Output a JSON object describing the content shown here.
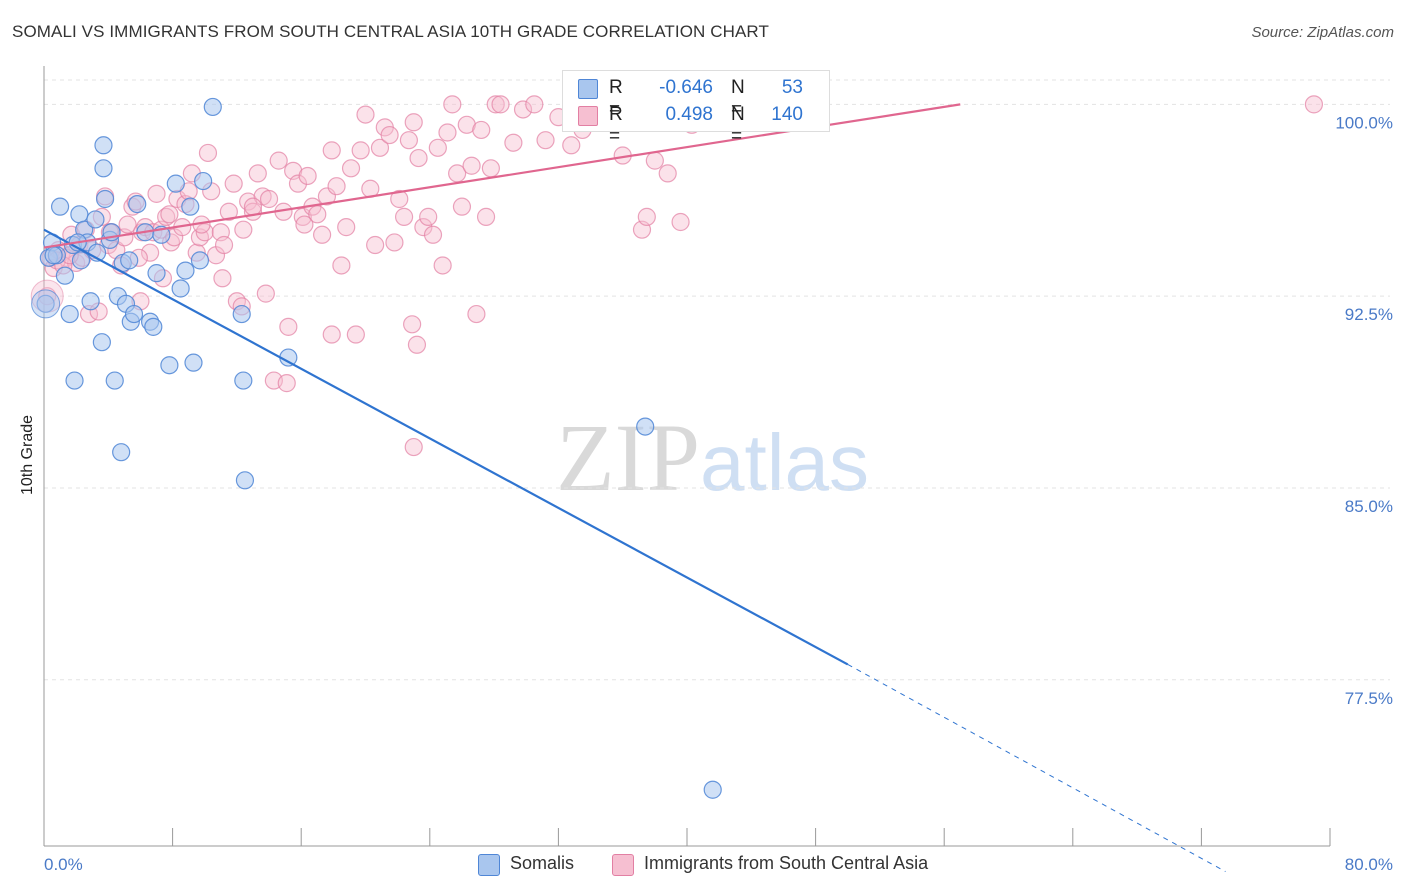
{
  "title": "SOMALI VS IMMIGRANTS FROM SOUTH CENTRAL ASIA 10TH GRADE CORRELATION CHART",
  "source": "Source: ZipAtlas.com",
  "watermark": {
    "zip": "ZIP",
    "atlas": "atlas"
  },
  "colors": {
    "somali_fill": "#a9c6ee",
    "somali_stroke": "#4f86d6",
    "somali_line": "#2f74d0",
    "sca_fill": "#f6bfd1",
    "sca_stroke": "#e27fa3",
    "sca_line": "#e0668f",
    "tick_label": "#4a7ac7",
    "grid": "#e3e3e3",
    "axis": "#999999"
  },
  "stats": [
    {
      "series": "Somalis",
      "r_label": "R =",
      "r_value": "-0.646",
      "n_label": "N =",
      "n_value": "53"
    },
    {
      "series": "Immigrants from South Central Asia",
      "r_label": "R =",
      "r_value": "0.498",
      "n_label": "N =",
      "n_value": "140"
    }
  ],
  "chart_data": {
    "type": "scatter",
    "title": "SOMALI VS IMMIGRANTS FROM SOUTH CENTRAL ASIA 10TH GRADE CORRELATION CHART",
    "xlabel": "",
    "ylabel": "10th Grade",
    "xlim": [
      0,
      80
    ],
    "ylim": [
      71.0,
      101.5
    ],
    "x_tick_labels": [
      "0.0%",
      "80.0%"
    ],
    "y_ticks": [
      77.5,
      85.0,
      92.5,
      100.0
    ],
    "y_tick_labels": [
      "77.5%",
      "85.0%",
      "92.5%",
      "100.0%"
    ],
    "grid": true,
    "legend": "bottom-center",
    "series": [
      {
        "name": "Somalis",
        "r": -0.646,
        "n": 53,
        "trend": {
          "x0": 0.0,
          "y0": 95.1,
          "x1": 50.0,
          "y1": 78.1,
          "dash_to_x": 73.5,
          "dash_to_y": 70.0
        },
        "points": [
          [
            0.1,
            92.2
          ],
          [
            0.3,
            94.0
          ],
          [
            0.5,
            94.6
          ],
          [
            0.8,
            94.1
          ],
          [
            1.0,
            96.0
          ],
          [
            1.3,
            93.3
          ],
          [
            1.6,
            91.8
          ],
          [
            1.8,
            94.5
          ],
          [
            2.2,
            95.7
          ],
          [
            2.5,
            95.1
          ],
          [
            2.7,
            94.6
          ],
          [
            2.9,
            92.3
          ],
          [
            3.2,
            95.5
          ],
          [
            3.3,
            94.2
          ],
          [
            3.6,
            90.7
          ],
          [
            3.8,
            96.3
          ],
          [
            3.7,
            98.4
          ],
          [
            3.7,
            97.5
          ],
          [
            4.1,
            94.7
          ],
          [
            4.2,
            95.0
          ],
          [
            4.4,
            89.2
          ],
          [
            4.6,
            92.5
          ],
          [
            4.8,
            86.4
          ],
          [
            4.9,
            93.8
          ],
          [
            5.1,
            92.2
          ],
          [
            5.3,
            93.9
          ],
          [
            5.4,
            91.5
          ],
          [
            5.6,
            91.8
          ],
          [
            5.8,
            96.1
          ],
          [
            6.3,
            95.0
          ],
          [
            6.6,
            91.5
          ],
          [
            6.8,
            91.3
          ],
          [
            7.0,
            93.4
          ],
          [
            7.3,
            94.9
          ],
          [
            7.8,
            89.8
          ],
          [
            8.2,
            96.9
          ],
          [
            8.5,
            92.8
          ],
          [
            8.8,
            93.5
          ],
          [
            9.1,
            96.0
          ],
          [
            9.3,
            89.9
          ],
          [
            9.7,
            93.9
          ],
          [
            9.9,
            97.0
          ],
          [
            10.5,
            99.9
          ],
          [
            12.3,
            91.8
          ],
          [
            12.4,
            89.2
          ],
          [
            12.5,
            85.3
          ],
          [
            15.2,
            90.1
          ],
          [
            1.9,
            89.2
          ],
          [
            2.1,
            94.6
          ],
          [
            2.3,
            93.9
          ],
          [
            37.4,
            87.4
          ],
          [
            41.6,
            73.2
          ],
          [
            0.6,
            94.1
          ]
        ]
      },
      {
        "name": "Immigrants from South Central Asia",
        "r": 0.498,
        "n": 140,
        "trend": {
          "x0": 0.0,
          "y0": 94.4,
          "x1": 57.0,
          "y1": 100.0
        },
        "points": [
          [
            0.2,
            92.5
          ],
          [
            0.4,
            94.0
          ],
          [
            0.6,
            93.6
          ],
          [
            0.9,
            94.3
          ],
          [
            1.1,
            94.2
          ],
          [
            1.4,
            94.0
          ],
          [
            1.7,
            94.9
          ],
          [
            2.0,
            93.8
          ],
          [
            2.2,
            94.5
          ],
          [
            2.4,
            94.0
          ],
          [
            2.6,
            95.1
          ],
          [
            2.8,
            91.8
          ],
          [
            3.0,
            94.3
          ],
          [
            3.4,
            91.9
          ],
          [
            3.6,
            95.6
          ],
          [
            3.8,
            96.4
          ],
          [
            4.0,
            94.5
          ],
          [
            4.2,
            95.0
          ],
          [
            4.5,
            94.3
          ],
          [
            4.8,
            93.7
          ],
          [
            5.0,
            94.8
          ],
          [
            5.2,
            95.3
          ],
          [
            5.5,
            96.0
          ],
          [
            5.7,
            96.2
          ],
          [
            6.0,
            92.3
          ],
          [
            6.1,
            95.0
          ],
          [
            6.3,
            95.2
          ],
          [
            6.6,
            94.2
          ],
          [
            6.8,
            95.0
          ],
          [
            7.0,
            96.5
          ],
          [
            7.3,
            95.1
          ],
          [
            7.6,
            95.6
          ],
          [
            7.9,
            94.6
          ],
          [
            8.1,
            94.8
          ],
          [
            8.3,
            96.3
          ],
          [
            8.6,
            95.2
          ],
          [
            8.8,
            96.1
          ],
          [
            9.0,
            96.6
          ],
          [
            9.2,
            97.3
          ],
          [
            9.5,
            94.2
          ],
          [
            9.7,
            94.8
          ],
          [
            10.0,
            95.0
          ],
          [
            10.2,
            98.1
          ],
          [
            10.4,
            96.6
          ],
          [
            10.7,
            94.1
          ],
          [
            11.0,
            95.0
          ],
          [
            11.2,
            94.5
          ],
          [
            11.5,
            95.8
          ],
          [
            11.8,
            96.9
          ],
          [
            12.0,
            92.3
          ],
          [
            12.4,
            95.1
          ],
          [
            12.7,
            96.2
          ],
          [
            13.0,
            95.8
          ],
          [
            13.3,
            97.3
          ],
          [
            13.6,
            96.4
          ],
          [
            14.0,
            96.3
          ],
          [
            14.3,
            89.2
          ],
          [
            14.6,
            97.8
          ],
          [
            14.9,
            95.8
          ],
          [
            15.2,
            91.3
          ],
          [
            15.5,
            97.4
          ],
          [
            15.8,
            96.9
          ],
          [
            16.1,
            95.6
          ],
          [
            16.4,
            97.2
          ],
          [
            16.7,
            96.0
          ],
          [
            17.0,
            95.7
          ],
          [
            17.3,
            94.9
          ],
          [
            17.6,
            96.4
          ],
          [
            17.9,
            98.2
          ],
          [
            18.2,
            96.8
          ],
          [
            18.5,
            93.7
          ],
          [
            18.8,
            95.2
          ],
          [
            19.1,
            97.5
          ],
          [
            19.4,
            91.0
          ],
          [
            19.7,
            98.2
          ],
          [
            20.0,
            99.6
          ],
          [
            20.3,
            96.7
          ],
          [
            20.6,
            94.5
          ],
          [
            20.9,
            98.3
          ],
          [
            21.2,
            99.1
          ],
          [
            21.5,
            98.8
          ],
          [
            21.8,
            94.6
          ],
          [
            22.1,
            96.3
          ],
          [
            22.4,
            95.6
          ],
          [
            22.7,
            98.6
          ],
          [
            23.0,
            99.3
          ],
          [
            23.3,
            97.9
          ],
          [
            23.6,
            95.2
          ],
          [
            23.9,
            95.6
          ],
          [
            24.2,
            94.9
          ],
          [
            24.5,
            98.3
          ],
          [
            24.8,
            93.7
          ],
          [
            25.1,
            98.9
          ],
          [
            25.4,
            100.0
          ],
          [
            25.7,
            97.3
          ],
          [
            26.0,
            96.0
          ],
          [
            26.3,
            99.2
          ],
          [
            26.6,
            97.6
          ],
          [
            26.9,
            91.8
          ],
          [
            27.2,
            99.0
          ],
          [
            27.5,
            95.6
          ],
          [
            27.8,
            97.5
          ],
          [
            28.1,
            100.0
          ],
          [
            28.4,
            100.0
          ],
          [
            29.2,
            98.5
          ],
          [
            29.8,
            99.8
          ],
          [
            30.5,
            100.0
          ],
          [
            31.2,
            98.6
          ],
          [
            32.0,
            99.5
          ],
          [
            32.8,
            98.4
          ],
          [
            33.5,
            99.0
          ],
          [
            34.2,
            99.6
          ],
          [
            35.0,
            100.0
          ],
          [
            36.0,
            98.0
          ],
          [
            37.2,
            95.1
          ],
          [
            37.5,
            95.6
          ],
          [
            38.0,
            97.8
          ],
          [
            38.8,
            97.3
          ],
          [
            39.6,
            95.4
          ],
          [
            40.3,
            99.2
          ],
          [
            0.8,
            93.9
          ],
          [
            1.2,
            93.7
          ],
          [
            1.6,
            94.1
          ],
          [
            5.9,
            94.0
          ],
          [
            7.4,
            93.2
          ],
          [
            13.8,
            92.6
          ],
          [
            15.1,
            89.1
          ],
          [
            17.9,
            91.0
          ],
          [
            22.9,
            91.4
          ],
          [
            23.2,
            90.6
          ],
          [
            23.0,
            86.6
          ],
          [
            7.8,
            95.7
          ],
          [
            9.8,
            95.3
          ],
          [
            11.1,
            93.2
          ],
          [
            12.3,
            92.1
          ],
          [
            13.0,
            96.0
          ],
          [
            16.2,
            95.3
          ],
          [
            79.0,
            100.0
          ],
          [
            4.1,
            95.0
          ]
        ]
      }
    ]
  }
}
